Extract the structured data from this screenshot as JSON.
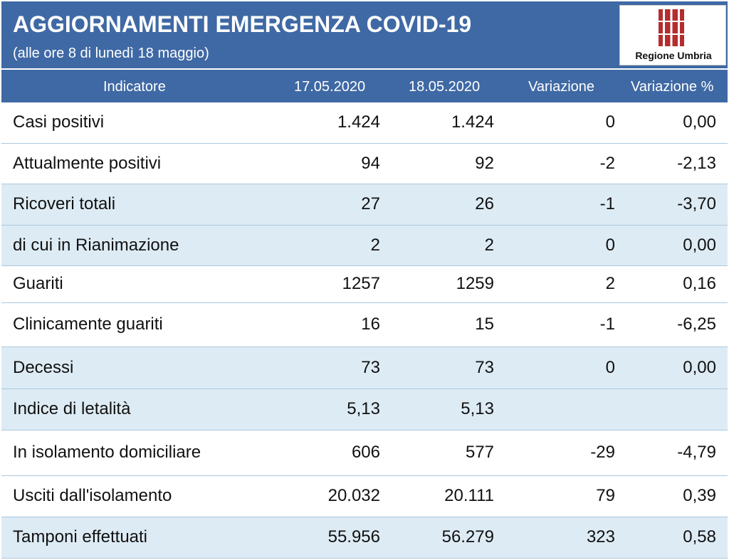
{
  "header": {
    "title": "AGGIORNAMENTI EMERGENZA COVID-19",
    "subtitle": "(alle ore 8 di lunedì 18 maggio)",
    "logo_text": "Regione Umbria"
  },
  "colors": {
    "header_bg": "#3f69a4",
    "row_blue": "#ddebf4",
    "logo_red": "#b32d2e"
  },
  "table": {
    "columns": [
      "Indicatore",
      "17.05.2020",
      "18.05.2020",
      "Variazione",
      "Variazione %"
    ],
    "rows": [
      {
        "indicatore": "Casi positivi",
        "d1": "1.424",
        "d2": "1.424",
        "var": "0",
        "varp": "0,00"
      },
      {
        "indicatore": "Attualmente positivi",
        "d1": "94",
        "d2": "92",
        "var": "-2",
        "varp": "-2,13"
      },
      {
        "indicatore": "Ricoveri totali",
        "d1": "27",
        "d2": "26",
        "var": "-1",
        "varp": "-3,70"
      },
      {
        "indicatore": "di cui in Rianimazione",
        "d1": "2",
        "d2": "2",
        "var": "0",
        "varp": "0,00"
      },
      {
        "indicatore": "Guariti",
        "d1": "1257",
        "d2": "1259",
        "var": "2",
        "varp": "0,16"
      },
      {
        "indicatore": "Clinicamente guariti",
        "d1": "16",
        "d2": "15",
        "var": "-1",
        "varp": "-6,25"
      },
      {
        "indicatore": "Decessi",
        "d1": "73",
        "d2": "73",
        "var": "0",
        "varp": "0,00"
      },
      {
        "indicatore": "Indice di letalità",
        "d1": "5,13",
        "d2": "5,13",
        "var": "",
        "varp": ""
      },
      {
        "indicatore": "In isolamento domiciliare",
        "d1": "606",
        "d2": "577",
        "var": "-29",
        "varp": "-4,79"
      },
      {
        "indicatore": "Usciti dall'isolamento",
        "d1": "20.032",
        "d2": "20.111",
        "var": "79",
        "varp": "0,39"
      },
      {
        "indicatore": "Tamponi effettuati",
        "d1": "55.956",
        "d2": "56.279",
        "var": "323",
        "varp": "0,58"
      }
    ]
  }
}
